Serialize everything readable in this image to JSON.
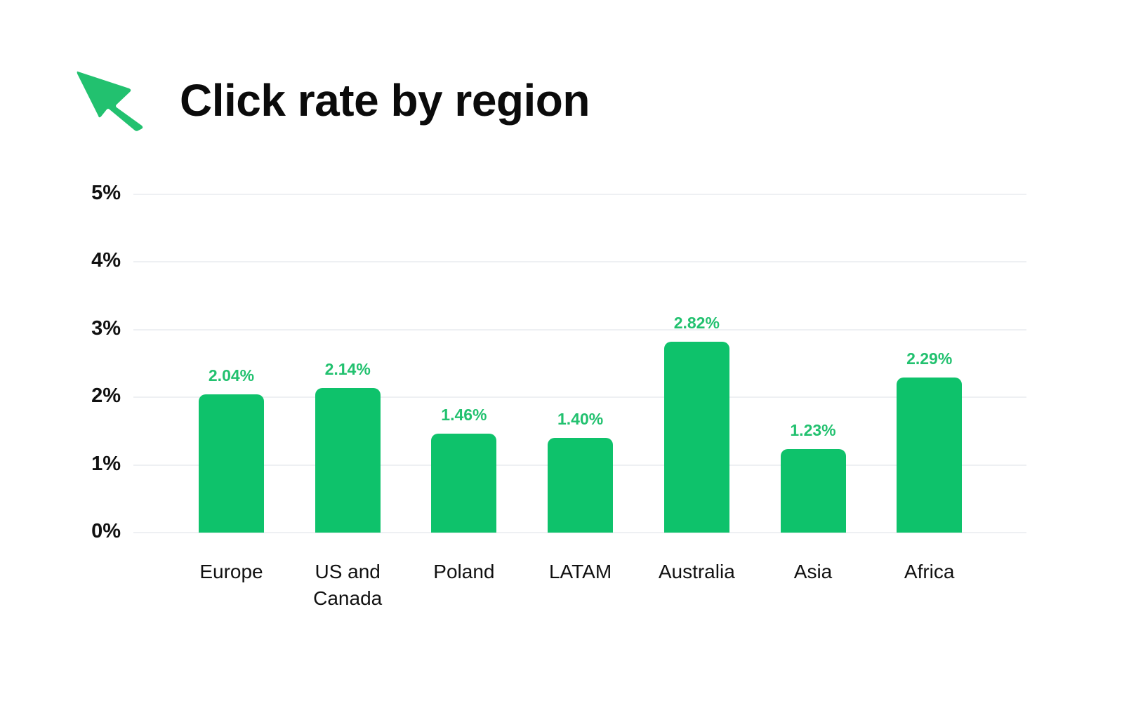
{
  "header": {
    "icon": "cursor-arrow-icon",
    "title": "Click rate by region"
  },
  "colors": {
    "bar": "#0ec26b",
    "bar_label": "#22c16f",
    "icon": "#22c16f",
    "grid": "#eef0f3",
    "text": "#111111"
  },
  "chart_data": {
    "type": "bar",
    "title": "Click rate by region",
    "xlabel": "",
    "ylabel": "",
    "categories": [
      "Europe",
      "US and Canada",
      "Poland",
      "LATAM",
      "Australia",
      "Asia",
      "Africa"
    ],
    "values": [
      2.04,
      2.14,
      1.46,
      1.4,
      2.82,
      1.23,
      2.29
    ],
    "value_labels": [
      "2.04%",
      "2.14%",
      "1.46%",
      "1.40%",
      "2.82%",
      "1.23%",
      "2.29%"
    ],
    "unit": "%",
    "ylim": [
      0,
      5
    ],
    "yticks": [
      0,
      1,
      2,
      3,
      4,
      5
    ],
    "ytick_labels": [
      "0%",
      "1%",
      "2%",
      "3%",
      "4%",
      "5%"
    ],
    "grid": true,
    "legend": null
  }
}
